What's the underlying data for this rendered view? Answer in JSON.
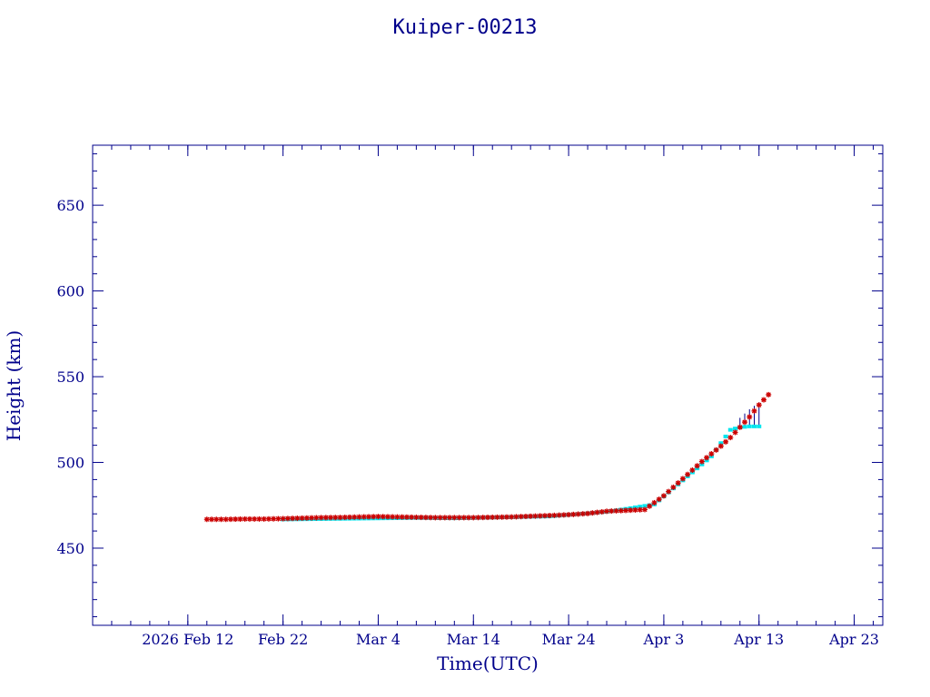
{
  "chart_data": {
    "type": "scatter",
    "title": "Kuiper-00213",
    "xlabel": "Time(UTC)",
    "ylabel": "Height (km)",
    "xlim": [
      "2026-02-02",
      "2026-04-26"
    ],
    "ylim": [
      405,
      685
    ],
    "x_ticks": [
      {
        "date": "2026-02-12",
        "label": "2026 Feb 12"
      },
      {
        "date": "2026-02-22",
        "label": "Feb 22"
      },
      {
        "date": "2026-03-04",
        "label": "Mar  4"
      },
      {
        "date": "2026-03-14",
        "label": "Mar 14"
      },
      {
        "date": "2026-03-24",
        "label": "Mar 24"
      },
      {
        "date": "2026-04-03",
        "label": "Apr  3"
      },
      {
        "date": "2026-04-13",
        "label": "Apr 13"
      },
      {
        "date": "2026-04-23",
        "label": "Apr 23"
      }
    ],
    "y_ticks": [
      450,
      500,
      550,
      600,
      650
    ],
    "y_minor_step": 10,
    "colors": {
      "axes": "#00008b",
      "observed": "#cc0000",
      "reference": "#00e5ee",
      "connector": "#00008b"
    },
    "series": [
      {
        "marker": "star",
        "color": "#cc0000",
        "points": [
          [
            "2026-02-14",
            466.8
          ],
          [
            "2026-02-16",
            466.8
          ],
          [
            "2026-02-18",
            467.0
          ],
          [
            "2026-02-20",
            467.0
          ],
          [
            "2026-02-22",
            467.2
          ],
          [
            "2026-02-24",
            467.5
          ],
          [
            "2026-02-26",
            467.8
          ],
          [
            "2026-02-28",
            467.9
          ],
          [
            "2026-03-02",
            468.2
          ],
          [
            "2026-03-04",
            468.4
          ],
          [
            "2026-03-06",
            468.2
          ],
          [
            "2026-03-08",
            468.0
          ],
          [
            "2026-03-10",
            467.8
          ],
          [
            "2026-03-12",
            467.8
          ],
          [
            "2026-03-14",
            467.8
          ],
          [
            "2026-03-16",
            468.0
          ],
          [
            "2026-03-18",
            468.2
          ],
          [
            "2026-03-20",
            468.6
          ],
          [
            "2026-03-22",
            469.0
          ],
          [
            "2026-03-24",
            469.5
          ],
          [
            "2026-03-26",
            470.2
          ],
          [
            "2026-03-28",
            471.5
          ],
          [
            "2026-03-30",
            472.0
          ],
          [
            "2026-04-01",
            472.5
          ],
          [
            "2026-04-02",
            476.5
          ],
          [
            "2026-04-03",
            480.5
          ],
          [
            "2026-04-04",
            485.5
          ],
          [
            "2026-04-05",
            490.5
          ],
          [
            "2026-04-06",
            495.5
          ],
          [
            "2026-04-07",
            500.5
          ],
          [
            "2026-04-08",
            505.0
          ],
          [
            "2026-04-09",
            509.5
          ],
          [
            "2026-04-10",
            514.5
          ],
          [
            "2026-04-11",
            520.5
          ],
          [
            "2026-04-12",
            526.5
          ],
          [
            "2026-04-13",
            533.5
          ],
          [
            "2026-04-14",
            539.5
          ]
        ]
      },
      {
        "marker": "square",
        "color": "#00e5ee",
        "points": [
          [
            "2026-02-22",
            466.7
          ],
          [
            "2026-03-08",
            467.6
          ],
          [
            "2026-03-12",
            467.4
          ],
          [
            "2026-03-22",
            468.5
          ],
          [
            "2026-03-28",
            471.2
          ],
          [
            "2026-04-02",
            475.5
          ],
          [
            "2026-04-05",
            489.5
          ],
          [
            "2026-04-08",
            503.5
          ],
          [
            "2026-04-10",
            519.0
          ],
          [
            "2026-04-11",
            520.5
          ],
          [
            "2026-04-12",
            521.0
          ],
          [
            "2026-04-13",
            521.0
          ]
        ]
      }
    ],
    "connectors": [
      [
        "2026-04-11",
        521.0,
        526.0
      ],
      [
        "2026-04-11.5",
        521.0,
        528.5
      ],
      [
        "2026-04-12",
        521.0,
        531.0
      ],
      [
        "2026-04-12.5",
        521.0,
        533.0
      ],
      [
        "2026-04-13",
        521.0,
        535.0
      ]
    ]
  }
}
